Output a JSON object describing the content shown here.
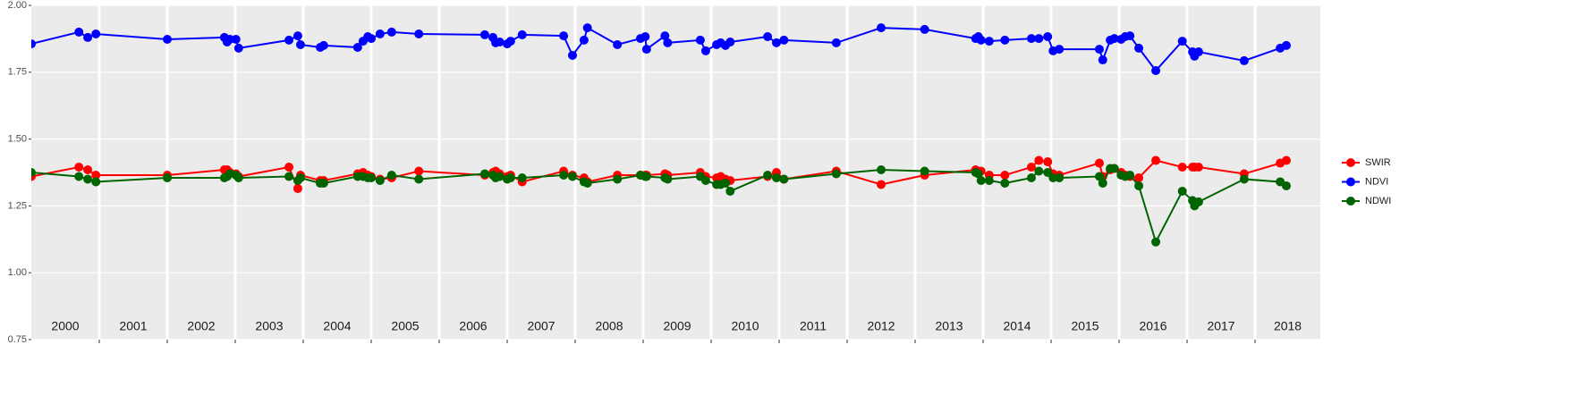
{
  "chart_data": {
    "type": "line",
    "x": [
      2000.0,
      2000.7,
      2000.83,
      2000.95,
      2002.0,
      2002.84,
      2002.88,
      2002.92,
      2003.01,
      2003.05,
      2003.79,
      2003.92,
      2003.96,
      2004.25,
      2004.3,
      2004.8,
      2004.88,
      2004.95,
      2005.0,
      2005.13,
      2005.3,
      2005.7,
      2006.67,
      2006.79,
      2006.83,
      2006.89,
      2007.0,
      2007.05,
      2007.22,
      2007.83,
      2007.96,
      2008.13,
      2008.18,
      2008.62,
      2008.96,
      2009.03,
      2009.05,
      2009.32,
      2009.36,
      2009.84,
      2009.92,
      2010.08,
      2010.14,
      2010.21,
      2010.28,
      2010.83,
      2010.96,
      2011.07,
      2011.84,
      2012.5,
      2013.14,
      2013.89,
      2013.93,
      2013.97,
      2014.09,
      2014.32,
      2014.71,
      2014.82,
      2014.95,
      2015.03,
      2015.12,
      2015.71,
      2015.76,
      2015.87,
      2015.93,
      2016.03,
      2016.09,
      2016.16,
      2016.29,
      2016.54,
      2016.93,
      2017.08,
      2017.11,
      2017.17,
      2017.84,
      2018.37,
      2018.46
    ],
    "series": [
      {
        "name": "SWIR",
        "color": "#ff0000",
        "values": [
          1.36,
          1.395,
          1.385,
          1.365,
          1.365,
          1.385,
          1.385,
          1.375,
          1.37,
          1.36,
          1.395,
          1.315,
          1.365,
          1.345,
          1.345,
          1.37,
          1.375,
          1.365,
          1.36,
          1.35,
          1.355,
          1.38,
          1.365,
          1.375,
          1.38,
          1.37,
          1.36,
          1.365,
          1.34,
          1.38,
          1.365,
          1.355,
          1.34,
          1.365,
          1.365,
          1.365,
          1.365,
          1.37,
          1.365,
          1.375,
          1.36,
          1.355,
          1.36,
          1.35,
          1.345,
          1.36,
          1.375,
          1.35,
          1.38,
          1.33,
          1.365,
          1.385,
          1.375,
          1.38,
          1.365,
          1.365,
          1.395,
          1.42,
          1.415,
          1.37,
          1.365,
          1.41,
          1.36,
          1.385,
          1.39,
          1.375,
          1.365,
          1.36,
          1.355,
          1.42,
          1.395,
          1.395,
          1.395,
          1.395,
          1.37,
          1.41,
          1.42
        ]
      },
      {
        "name": "NDVI",
        "color": "#0000ff",
        "values": [
          1.856,
          1.9,
          1.88,
          1.893,
          1.873,
          1.88,
          1.863,
          1.873,
          1.873,
          1.84,
          1.87,
          1.886,
          1.853,
          1.843,
          1.85,
          1.843,
          1.866,
          1.883,
          1.876,
          1.893,
          1.9,
          1.893,
          1.89,
          1.88,
          1.86,
          1.863,
          1.856,
          1.866,
          1.89,
          1.886,
          1.813,
          1.87,
          1.916,
          1.853,
          1.876,
          1.883,
          1.836,
          1.886,
          1.86,
          1.87,
          1.83,
          1.853,
          1.86,
          1.85,
          1.863,
          1.883,
          1.86,
          1.87,
          1.86,
          1.916,
          1.91,
          1.876,
          1.883,
          1.87,
          1.866,
          1.87,
          1.876,
          1.876,
          1.883,
          1.83,
          1.836,
          1.836,
          1.796,
          1.87,
          1.876,
          1.873,
          1.883,
          1.886,
          1.84,
          1.756,
          1.866,
          1.826,
          1.81,
          1.826,
          1.793,
          1.84,
          1.85
        ]
      },
      {
        "name": "NDWI",
        "color": "#006400",
        "values": [
          1.375,
          1.36,
          1.35,
          1.34,
          1.355,
          1.355,
          1.36,
          1.37,
          1.365,
          1.355,
          1.36,
          1.345,
          1.355,
          1.335,
          1.335,
          1.36,
          1.36,
          1.355,
          1.355,
          1.345,
          1.365,
          1.35,
          1.37,
          1.365,
          1.355,
          1.36,
          1.35,
          1.355,
          1.355,
          1.365,
          1.36,
          1.34,
          1.335,
          1.35,
          1.365,
          1.36,
          1.36,
          1.355,
          1.35,
          1.36,
          1.345,
          1.33,
          1.33,
          1.335,
          1.305,
          1.365,
          1.355,
          1.35,
          1.37,
          1.385,
          1.38,
          1.375,
          1.37,
          1.345,
          1.345,
          1.335,
          1.355,
          1.38,
          1.375,
          1.355,
          1.355,
          1.36,
          1.335,
          1.39,
          1.39,
          1.365,
          1.36,
          1.365,
          1.325,
          1.115,
          1.305,
          1.27,
          1.25,
          1.265,
          1.35,
          1.34,
          1.325
        ]
      }
    ],
    "xlim": [
      2000,
      2018.96
    ],
    "xticks": [
      2001,
      2002,
      2003,
      2004,
      2005,
      2006,
      2007,
      2008,
      2009,
      2010,
      2011,
      2012,
      2013,
      2014,
      2015,
      2016,
      2017,
      2018
    ],
    "ylim": [
      0.75,
      2.0
    ],
    "yticks": [
      {
        "value": 0.75,
        "label": "0.75"
      },
      {
        "value": 1,
        "label": "1.00"
      },
      {
        "value": 1.25,
        "label": "1.25"
      },
      {
        "value": 1.5,
        "label": "1.50"
      },
      {
        "value": 1.75,
        "label": "1.75"
      },
      {
        "value": 2,
        "label": "2.00"
      }
    ],
    "year_labels": [
      "2000",
      "2001",
      "2002",
      "2003",
      "2004",
      "2005",
      "2006",
      "2007",
      "2008",
      "2009",
      "2010",
      "2011",
      "2012",
      "2013",
      "2014",
      "2015",
      "2016",
      "2017",
      "2018"
    ],
    "grid": true,
    "legend": "right"
  }
}
